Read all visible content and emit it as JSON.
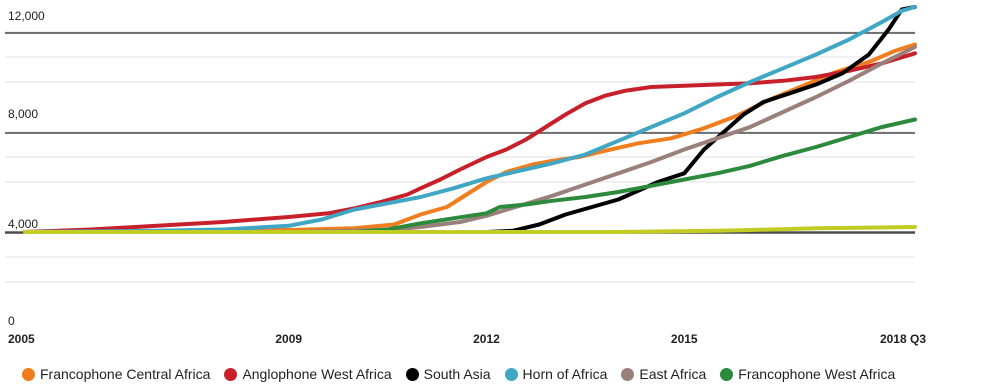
{
  "chart_data": {
    "type": "line",
    "title": "",
    "xlabel": "",
    "ylabel": "",
    "x_ticks": [
      {
        "value": 2005,
        "label": "2005"
      },
      {
        "value": 2009,
        "label": "2009"
      },
      {
        "value": 2012,
        "label": "2012"
      },
      {
        "value": 2015,
        "label": "2015"
      },
      {
        "value": 2018.5,
        "label": "2018 Q3"
      }
    ],
    "y_ticks": [
      {
        "value": 0,
        "label": "0"
      },
      {
        "value": 4000,
        "label": "4,000"
      },
      {
        "value": 8000,
        "label": "8,000"
      },
      {
        "value": 12000,
        "label": "12,000"
      }
    ],
    "xlim": [
      2005,
      2018.5
    ],
    "ylim": [
      0,
      12000
    ],
    "grid": true,
    "legend_position": "bottom",
    "series": [
      {
        "name": "Francophone Central Africa",
        "color": "#f07d1e",
        "points": [
          [
            2005,
            3000
          ],
          [
            2008,
            3050
          ],
          [
            2009,
            3080
          ],
          [
            2010,
            3150
          ],
          [
            2010.6,
            3300
          ],
          [
            2011,
            3700
          ],
          [
            2011.4,
            4000
          ],
          [
            2011.7,
            4500
          ],
          [
            2012,
            5000
          ],
          [
            2012.3,
            5400
          ],
          [
            2012.7,
            5700
          ],
          [
            2013,
            5850
          ],
          [
            2013.4,
            6000
          ],
          [
            2013.8,
            6250
          ],
          [
            2014.3,
            6550
          ],
          [
            2014.8,
            6750
          ],
          [
            2015.3,
            7150
          ],
          [
            2015.8,
            7650
          ],
          [
            2016.3,
            8300
          ],
          [
            2016.8,
            8850
          ],
          [
            2017.3,
            9400
          ],
          [
            2017.8,
            9800
          ],
          [
            2018.2,
            10250
          ],
          [
            2018.5,
            10500
          ]
        ]
      },
      {
        "name": "Anglophone West Africa",
        "color": "#c8202b",
        "points": [
          [
            2005,
            3000
          ],
          [
            2006,
            3100
          ],
          [
            2007,
            3250
          ],
          [
            2008,
            3400
          ],
          [
            2009,
            3600
          ],
          [
            2009.6,
            3750
          ],
          [
            2010,
            3950
          ],
          [
            2010.4,
            4200
          ],
          [
            2010.8,
            4500
          ],
          [
            2011,
            4750
          ],
          [
            2011.3,
            5100
          ],
          [
            2011.6,
            5500
          ],
          [
            2012,
            6000
          ],
          [
            2012.3,
            6300
          ],
          [
            2012.6,
            6700
          ],
          [
            2012.9,
            7200
          ],
          [
            2013.2,
            7700
          ],
          [
            2013.5,
            8150
          ],
          [
            2013.8,
            8450
          ],
          [
            2014.1,
            8650
          ],
          [
            2014.5,
            8800
          ],
          [
            2015,
            8850
          ],
          [
            2015.5,
            8900
          ],
          [
            2016,
            8950
          ],
          [
            2016.5,
            9050
          ],
          [
            2017,
            9200
          ],
          [
            2017.5,
            9450
          ],
          [
            2018,
            9750
          ],
          [
            2018.5,
            10150
          ]
        ]
      },
      {
        "name": "South Asia",
        "color": "#000000",
        "points": [
          [
            2012,
            3000
          ],
          [
            2012.4,
            3050
          ],
          [
            2012.8,
            3300
          ],
          [
            2013.2,
            3700
          ],
          [
            2013.6,
            4000
          ],
          [
            2014,
            4300
          ],
          [
            2014.3,
            4650
          ],
          [
            2014.6,
            5000
          ],
          [
            2015,
            5350
          ],
          [
            2015.3,
            6300
          ],
          [
            2015.6,
            7000
          ],
          [
            2015.9,
            7700
          ],
          [
            2016.2,
            8200
          ],
          [
            2016.6,
            8550
          ],
          [
            2017,
            8900
          ],
          [
            2017.4,
            9350
          ],
          [
            2017.8,
            10100
          ],
          [
            2018.1,
            11100
          ],
          [
            2018.3,
            11900
          ],
          [
            2018.5,
            12000
          ]
        ]
      },
      {
        "name": "Horn of Africa",
        "color": "#3fa6c3",
        "points": [
          [
            2005,
            3000
          ],
          [
            2007,
            3050
          ],
          [
            2008,
            3100
          ],
          [
            2009,
            3250
          ],
          [
            2009.5,
            3500
          ],
          [
            2010,
            3900
          ],
          [
            2010.5,
            4150
          ],
          [
            2011,
            4400
          ],
          [
            2011.5,
            4750
          ],
          [
            2012,
            5150
          ],
          [
            2012.5,
            5450
          ],
          [
            2013,
            5750
          ],
          [
            2013.5,
            6100
          ],
          [
            2014,
            6650
          ],
          [
            2014.5,
            7200
          ],
          [
            2015,
            7750
          ],
          [
            2015.5,
            8400
          ],
          [
            2016,
            9000
          ],
          [
            2016.5,
            9550
          ],
          [
            2017,
            10100
          ],
          [
            2017.5,
            10700
          ],
          [
            2018,
            11400
          ],
          [
            2018.3,
            11850
          ],
          [
            2018.5,
            12000
          ]
        ]
      },
      {
        "name": "East Africa",
        "color": "#9a807a",
        "points": [
          [
            2005,
            3000
          ],
          [
            2009,
            3000
          ],
          [
            2010,
            3050
          ],
          [
            2010.6,
            3100
          ],
          [
            2011,
            3200
          ],
          [
            2011.6,
            3400
          ],
          [
            2012,
            3650
          ],
          [
            2012.5,
            4050
          ],
          [
            2013,
            4450
          ],
          [
            2013.5,
            4900
          ],
          [
            2014,
            5350
          ],
          [
            2014.5,
            5800
          ],
          [
            2015,
            6300
          ],
          [
            2015.5,
            6750
          ],
          [
            2016,
            7200
          ],
          [
            2016.5,
            7800
          ],
          [
            2017,
            8400
          ],
          [
            2017.5,
            9050
          ],
          [
            2018,
            9750
          ],
          [
            2018.5,
            10400
          ]
        ]
      },
      {
        "name": "Francophone West Africa",
        "color": "#2c8a3c",
        "points": [
          [
            2005,
            3000
          ],
          [
            2010,
            3000
          ],
          [
            2010.5,
            3100
          ],
          [
            2011,
            3350
          ],
          [
            2011.5,
            3550
          ],
          [
            2012,
            3750
          ],
          [
            2012.2,
            4000
          ],
          [
            2012.6,
            4100
          ],
          [
            2013,
            4250
          ],
          [
            2013.5,
            4400
          ],
          [
            2014,
            4600
          ],
          [
            2014.5,
            4850
          ],
          [
            2015,
            5100
          ],
          [
            2015.5,
            5350
          ],
          [
            2016,
            5650
          ],
          [
            2016.5,
            6050
          ],
          [
            2017,
            6400
          ],
          [
            2017.5,
            6800
          ],
          [
            2018,
            7200
          ],
          [
            2018.5,
            7500
          ]
        ]
      },
      {
        "name": "",
        "color": "#c3cc22",
        "points": [
          [
            2005,
            3000
          ],
          [
            2010,
            3000
          ],
          [
            2014,
            3000
          ],
          [
            2015.5,
            3050
          ],
          [
            2016,
            3080
          ],
          [
            2017,
            3150
          ],
          [
            2018.5,
            3200
          ]
        ]
      }
    ]
  }
}
